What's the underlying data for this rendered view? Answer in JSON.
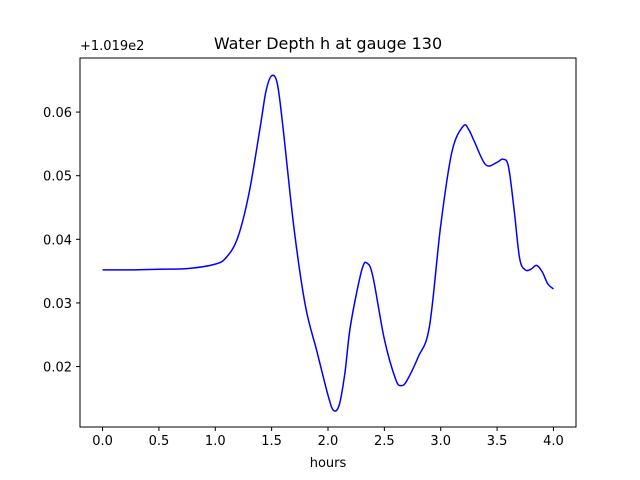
{
  "chart_data": {
    "type": "line",
    "title": "Water Depth h at gauge 130",
    "xlabel": "hours",
    "ylabel": "",
    "y_offset_label": "+1.019e2",
    "xlim": [
      -0.2,
      4.2
    ],
    "ylim": [
      0.0105,
      0.0685
    ],
    "x_ticks": [
      0.0,
      0.5,
      1.0,
      1.5,
      2.0,
      2.5,
      3.0,
      3.5,
      4.0
    ],
    "x_tick_labels": [
      "0.0",
      "0.5",
      "1.0",
      "1.5",
      "2.0",
      "2.5",
      "3.0",
      "3.5",
      "4.0"
    ],
    "y_ticks": [
      0.02,
      0.03,
      0.04,
      0.05,
      0.06
    ],
    "y_tick_labels": [
      "0.02",
      "0.03",
      "0.04",
      "0.05",
      "0.06"
    ],
    "grid": false,
    "series": [
      {
        "color": "#0000ff",
        "x": [
          0.0,
          0.25,
          0.5,
          0.75,
          1.0,
          1.1,
          1.2,
          1.3,
          1.4,
          1.45,
          1.5,
          1.55,
          1.6,
          1.7,
          1.8,
          1.9,
          2.0,
          2.05,
          2.1,
          2.15,
          2.2,
          2.3,
          2.35,
          2.4,
          2.5,
          2.6,
          2.65,
          2.7,
          2.8,
          2.9,
          3.0,
          3.1,
          3.2,
          3.25,
          3.3,
          3.4,
          3.5,
          3.55,
          3.6,
          3.65,
          3.7,
          3.75,
          3.8,
          3.85,
          3.9,
          3.95,
          4.0
        ],
        "y": [
          0.0352,
          0.0352,
          0.0353,
          0.0354,
          0.0361,
          0.0372,
          0.0403,
          0.0473,
          0.0578,
          0.0633,
          0.0657,
          0.0645,
          0.0577,
          0.0415,
          0.0295,
          0.0225,
          0.0155,
          0.0131,
          0.014,
          0.019,
          0.0265,
          0.0352,
          0.0362,
          0.034,
          0.0243,
          0.018,
          0.017,
          0.0178,
          0.0215,
          0.0263,
          0.0422,
          0.0538,
          0.0578,
          0.0572,
          0.0553,
          0.0517,
          0.0521,
          0.0526,
          0.0515,
          0.0448,
          0.037,
          0.0352,
          0.0353,
          0.0359,
          0.0349,
          0.033,
          0.0322
        ]
      }
    ]
  }
}
